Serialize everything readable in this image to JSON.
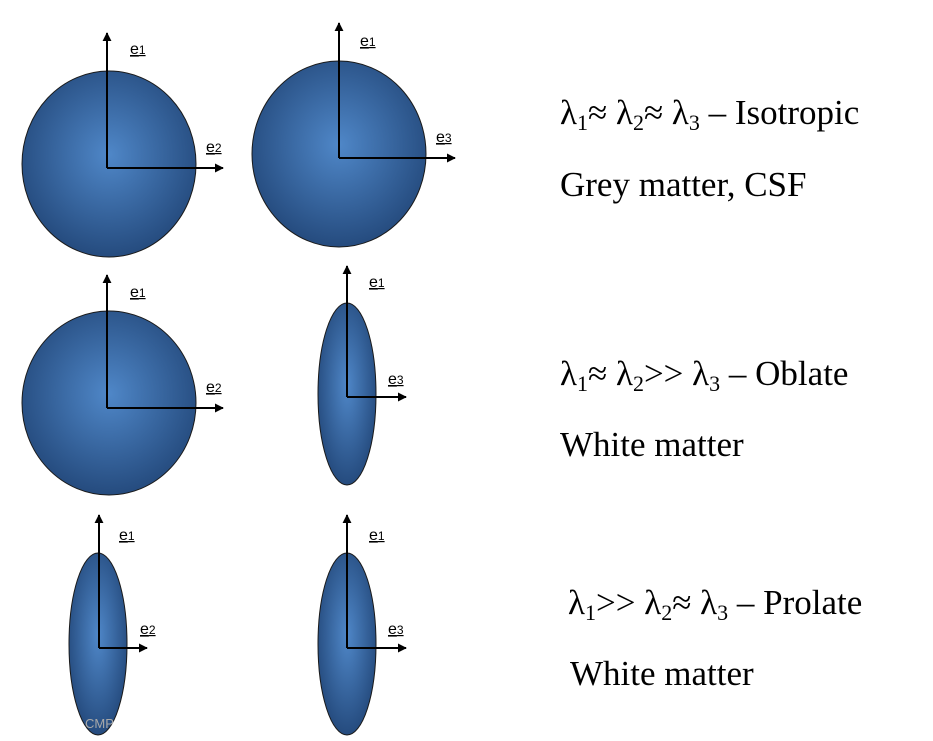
{
  "colors": {
    "ellipsoid_center": "#4f87c8",
    "ellipsoid_edge": "#254b7e",
    "outline": "#1a1a1a",
    "axis": "#000000"
  },
  "rows": [
    {
      "panels": [
        {
          "shape": "sphere",
          "vertical_label": "e",
          "vertical_index": "1",
          "horizontal_label": "e",
          "horizontal_index": "2"
        },
        {
          "shape": "sphere",
          "vertical_label": "e",
          "vertical_index": "1",
          "horizontal_label": "e",
          "horizontal_index": "3"
        }
      ],
      "relation": {
        "l1": "λ",
        "s1": "1",
        "op1": "≈ ",
        "l2": "λ",
        "s2": "2",
        "op2": "≈ ",
        "l3": "λ",
        "s3": "3",
        "tail": " – Isotropic"
      },
      "tissue": "Grey matter, CSF"
    },
    {
      "panels": [
        {
          "shape": "sphere",
          "vertical_label": "e",
          "vertical_index": "1",
          "horizontal_label": "e",
          "horizontal_index": "2"
        },
        {
          "shape": "thin-ellipse",
          "vertical_label": "e",
          "vertical_index": "1",
          "horizontal_label": "e",
          "horizontal_index": "3"
        }
      ],
      "relation": {
        "l1": "λ",
        "s1": "1",
        "op1": "≈ ",
        "l2": "λ",
        "s2": "2",
        "op2": ">> ",
        "l3": "λ",
        "s3": "3",
        "tail": " – Oblate"
      },
      "tissue": "White matter"
    },
    {
      "panels": [
        {
          "shape": "thin-ellipse",
          "vertical_label": "e",
          "vertical_index": "1",
          "horizontal_label": "e",
          "horizontal_index": "2"
        },
        {
          "shape": "thin-ellipse",
          "vertical_label": "e",
          "vertical_index": "1",
          "horizontal_label": "e",
          "horizontal_index": "3"
        }
      ],
      "relation": {
        "l1": "λ",
        "s1": "1",
        "op1": ">> ",
        "l2": "λ",
        "s2": "2",
        "op2": "≈ ",
        "l3": "λ",
        "s3": "3",
        "tail": " – Prolate"
      },
      "tissue": "White matter"
    }
  ],
  "footer_mark": "CMP"
}
